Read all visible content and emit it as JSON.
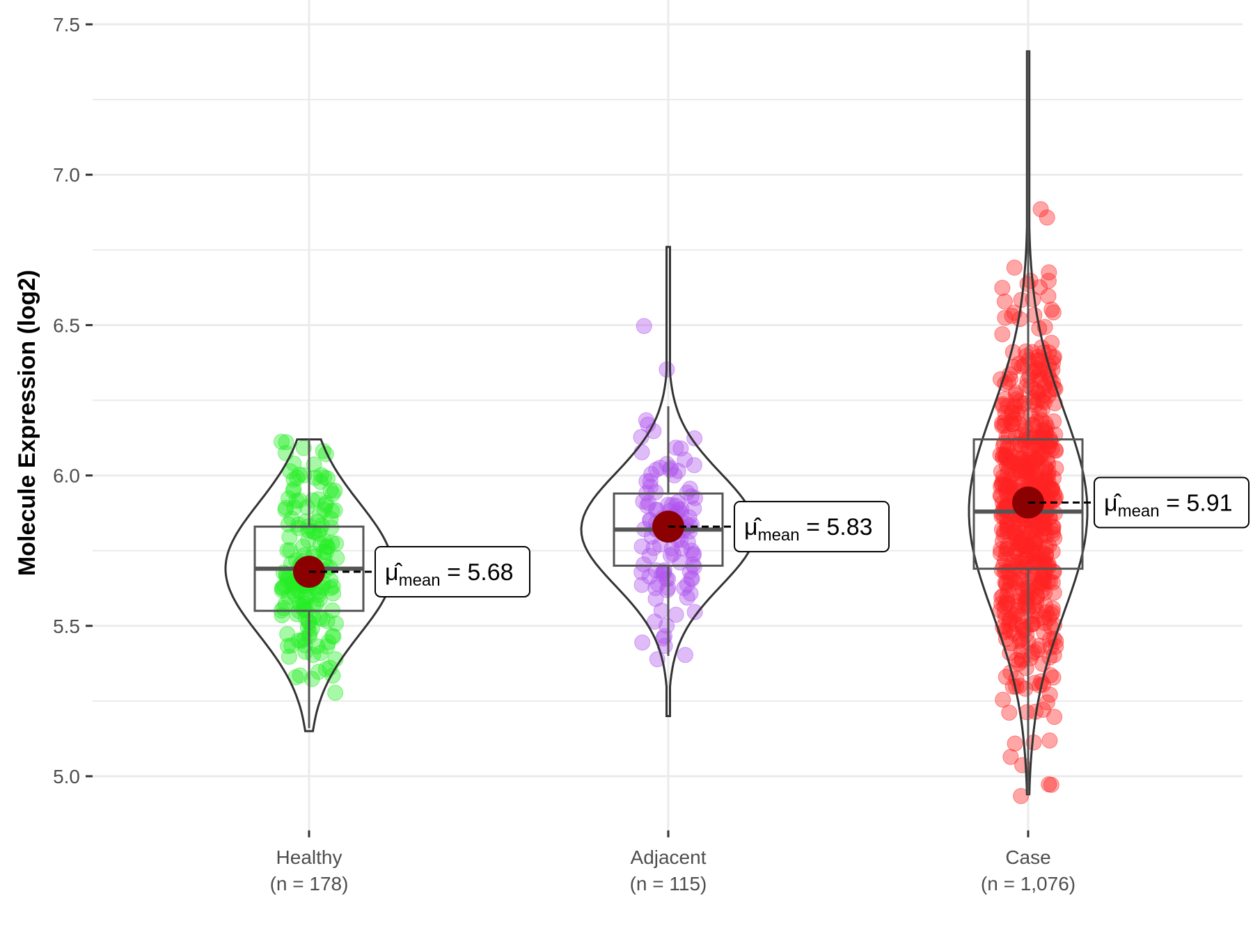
{
  "chart_data": {
    "type": "violin",
    "title": "",
    "xlabel": "",
    "ylabel": "Molecule Expression (log2)",
    "ylim": [
      4.82,
      7.55
    ],
    "yticks": [
      5.0,
      5.5,
      6.0,
      6.5,
      7.0,
      7.5
    ],
    "ytick_labels": [
      "5.0",
      "5.5",
      "6.0",
      "6.5",
      "7.0",
      "7.5"
    ],
    "grid": true,
    "legend": "none",
    "categories": [
      "Healthy",
      "Adjacent",
      "Case"
    ],
    "category_labels": [
      [
        "Healthy",
        "(n = 178)"
      ],
      [
        "Adjacent",
        "(n = 115)"
      ],
      [
        "Case",
        "(n = 1,076)"
      ]
    ],
    "series": [
      {
        "name": "Healthy",
        "n": 178,
        "color": "#22ee22",
        "mean": 5.68,
        "mean_label": "5.68",
        "box": {
          "whisker_low": 5.16,
          "q1": 5.55,
          "median": 5.69,
          "q3": 5.83,
          "whisker_high": 6.12
        },
        "violin_range": [
          5.15,
          6.12
        ],
        "point_range": [
          5.15,
          6.12
        ]
      },
      {
        "name": "Adjacent",
        "n": 115,
        "color": "#b055ee",
        "mean": 5.83,
        "mean_label": "5.83",
        "box": {
          "whisker_low": 5.4,
          "q1": 5.7,
          "median": 5.82,
          "q3": 5.94,
          "whisker_high": 6.23
        },
        "violin_range": [
          5.2,
          6.76
        ],
        "point_range": [
          5.2,
          6.76
        ]
      },
      {
        "name": "Case",
        "n": 1076,
        "color": "#ff2222",
        "mean": 5.91,
        "mean_label": "5.91",
        "box": {
          "whisker_low": 4.94,
          "q1": 5.69,
          "median": 5.88,
          "q3": 6.12,
          "whisker_high": 7.41
        },
        "violin_range": [
          4.94,
          7.41
        ],
        "point_range": [
          4.93,
          7.41
        ]
      }
    ],
    "annotation_symbol": "μ̂",
    "annotation_subscript": "mean",
    "mean_marker_color": "#8b0000"
  }
}
